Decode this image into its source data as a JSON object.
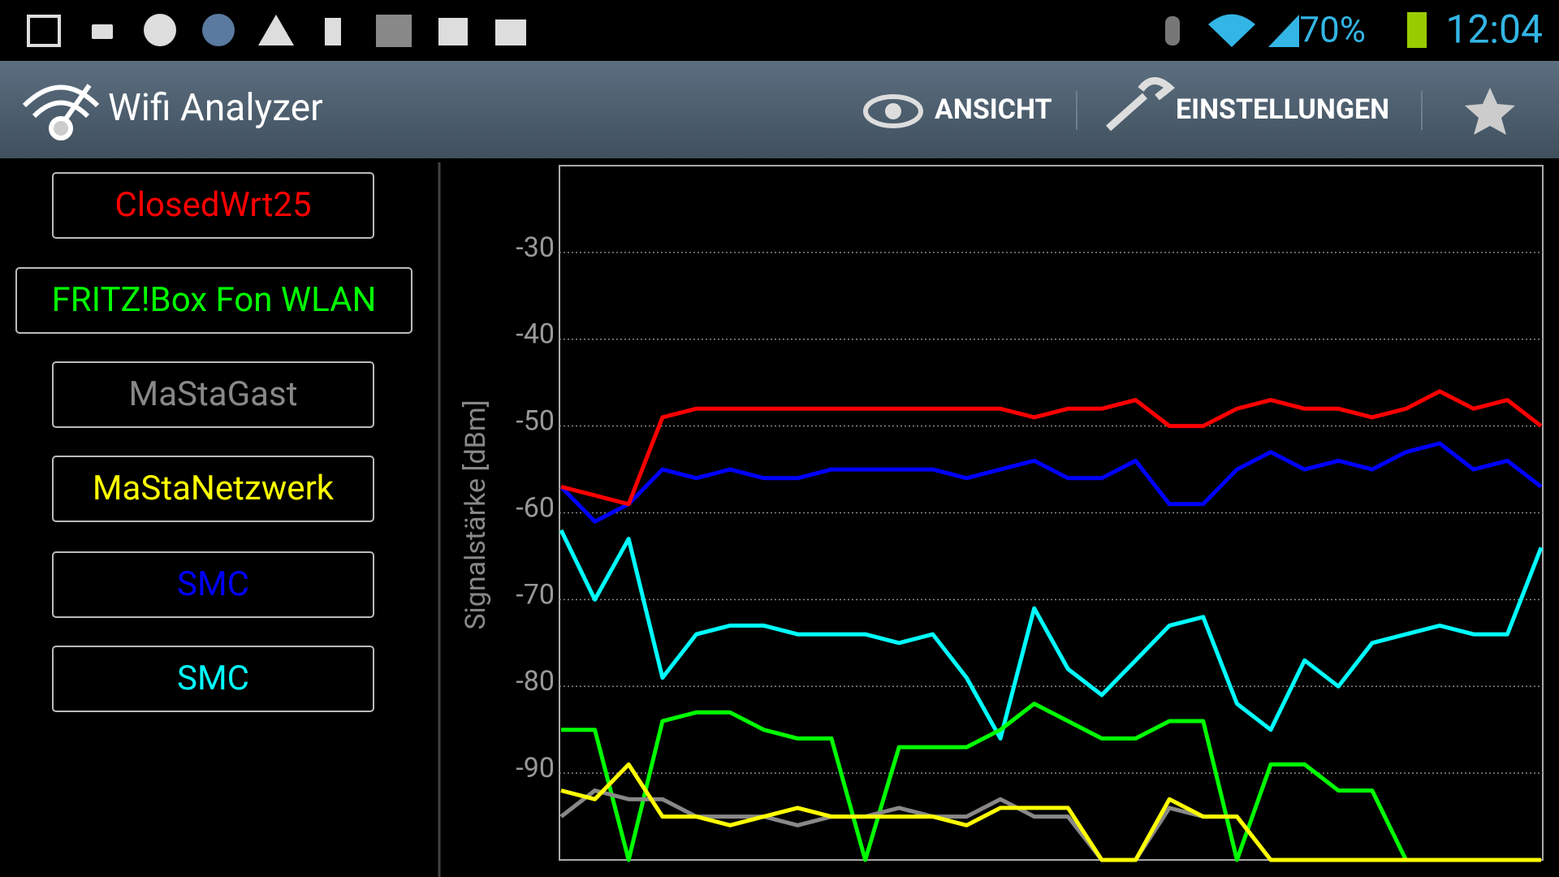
{
  "status_bar": {
    "battery": "70%",
    "time": "12:04"
  },
  "action_bar": {
    "title": "Wifi Analyzer",
    "buttons": [
      "ANSICHT",
      "EINSTELLUNGEN"
    ]
  },
  "chart_data": {
    "type": "line",
    "y_label": "Signalstärke [dBm]",
    "ylim": [
      -100,
      -20
    ],
    "yticks": [
      -30,
      -40,
      -50,
      -60,
      -70,
      -80,
      -90
    ],
    "grid": true,
    "series": [
      {
        "name": "ClosedWrt25",
        "color": "#ff0000",
        "values": [
          -57,
          -58,
          -59,
          -49,
          -48,
          -48,
          -48,
          -48,
          -48,
          -48,
          -48,
          -48,
          -48,
          -48,
          -49,
          -48,
          -48,
          -47,
          -50,
          -50,
          -48,
          -47,
          -48,
          -48,
          -49,
          -48,
          -46,
          -48,
          -47,
          -50
        ]
      },
      {
        "name": "FRITZ!Box Fon WLAN",
        "color": "#00ff00",
        "values": [
          -85,
          -85,
          -100,
          -84,
          -83,
          -83,
          -85,
          -86,
          -86,
          -100,
          -87,
          -87,
          -87,
          -85,
          -82,
          -84,
          -86,
          -86,
          -84,
          -84,
          -100,
          -89,
          -89,
          -92,
          -92,
          -100,
          -100,
          -100,
          -100,
          -100
        ]
      },
      {
        "name": "MaStaGast",
        "color": "#888888",
        "values": [
          -95,
          -92,
          -93,
          -93,
          -95,
          -95,
          -95,
          -96,
          -95,
          -95,
          -94,
          -95,
          -95,
          -93,
          -95,
          -95,
          -100,
          -100,
          -94,
          -95,
          -95,
          -100,
          -100,
          -100,
          -100,
          -100,
          -100,
          -100,
          -100,
          -100
        ]
      },
      {
        "name": "MaStaNetzwerk",
        "color": "#ffff00",
        "values": [
          -92,
          -93,
          -89,
          -95,
          -95,
          -96,
          -95,
          -94,
          -95,
          -95,
          -95,
          -95,
          -96,
          -94,
          -94,
          -94,
          -100,
          -100,
          -93,
          -95,
          -95,
          -100,
          -100,
          -100,
          -100,
          -100,
          -100,
          -100,
          -100,
          -100
        ]
      },
      {
        "name": "SMC",
        "color": "#0000ff",
        "values": [
          -57,
          -61,
          -59,
          -55,
          -56,
          -55,
          -56,
          -56,
          -55,
          -55,
          -55,
          -55,
          -56,
          -55,
          -54,
          -56,
          -56,
          -54,
          -59,
          -59,
          -55,
          -53,
          -55,
          -54,
          -55,
          -53,
          -52,
          -55,
          -54,
          -57
        ]
      },
      {
        "name": "SMC",
        "color": "#00ffff",
        "values": [
          -62,
          -70,
          -63,
          -79,
          -74,
          -73,
          -73,
          -74,
          -74,
          -74,
          -75,
          -74,
          -79,
          -86,
          -71,
          -78,
          -81,
          -77,
          -73,
          -72,
          -82,
          -85,
          -77,
          -80,
          -75,
          -74,
          -73,
          -74,
          -74,
          -64
        ]
      }
    ]
  }
}
